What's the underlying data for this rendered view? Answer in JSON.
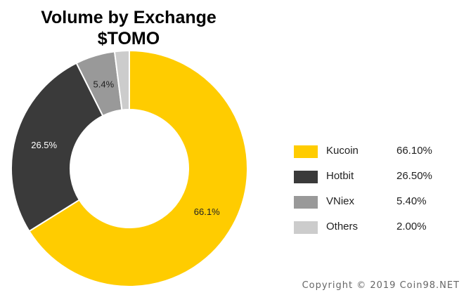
{
  "chart_data": {
    "type": "pie",
    "variant": "donut",
    "title": "Volume by Exchange",
    "subtitle": "$TOMO",
    "slices": [
      {
        "name": "Kucoin",
        "value": 66.1,
        "label": "66.1%",
        "legend_value": "66.10%",
        "color": "#FFCC00",
        "label_color": "#222222"
      },
      {
        "name": "Hotbit",
        "value": 26.5,
        "label": "26.5%",
        "legend_value": "26.50%",
        "color": "#3A3A3A",
        "label_color": "#FFFFFF"
      },
      {
        "name": "VNiex",
        "value": 5.4,
        "label": "5.4%",
        "legend_value": "5.40%",
        "color": "#999999",
        "label_color": "#222222"
      },
      {
        "name": "Others",
        "value": 2.0,
        "label": "",
        "legend_value": "2.00%",
        "color": "#CCCCCC",
        "label_color": "#222222"
      }
    ],
    "legend_position": "right"
  },
  "footer": {
    "copyright": "Copyright © 2019 Coin98.NET"
  }
}
